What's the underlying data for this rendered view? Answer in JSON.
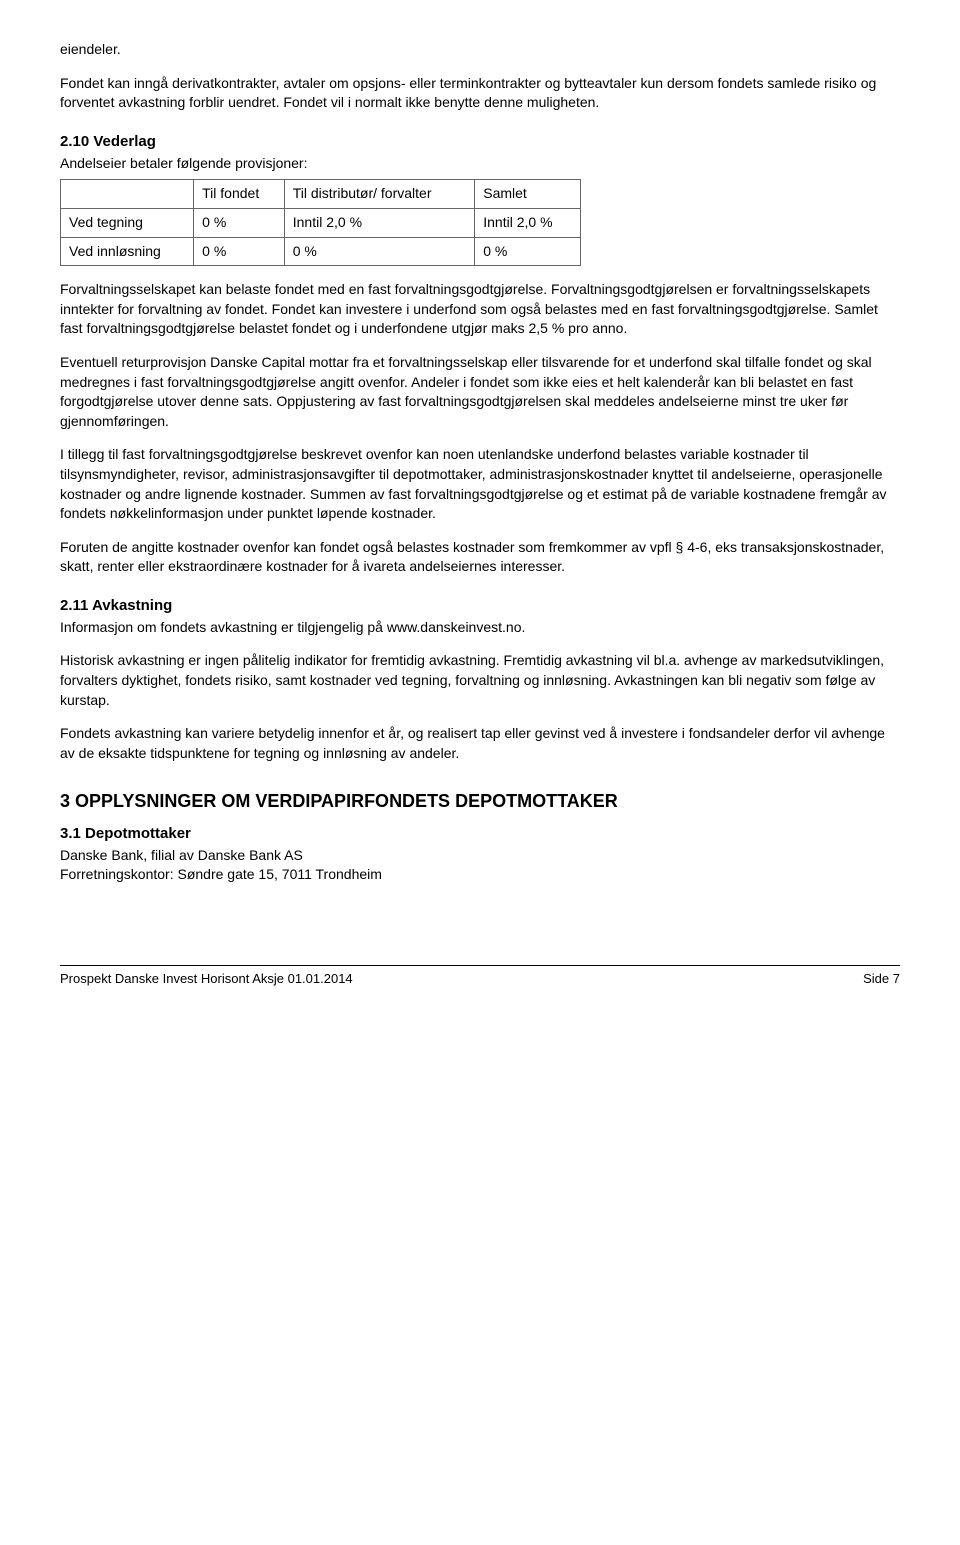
{
  "top_word": "eiendeler.",
  "para1": "Fondet kan inngå derivatkontrakter, avtaler om opsjons- eller terminkontrakter og bytteavtaler kun dersom fondets samlede risiko og forventet avkastning forblir uendret. Fondet vil i normalt ikke benytte denne muligheten.",
  "heading_vederlag": "2.10 Vederlag",
  "vederlag_intro": "Andelseier betaler følgende provisjoner:",
  "table": {
    "h1": "",
    "h2": "Til fondet",
    "h3": "Til distributør/ forvalter",
    "h4": "Samlet",
    "r1c1": "Ved tegning",
    "r1c2": "0 %",
    "r1c3": "Inntil 2,0 %",
    "r1c4": "Inntil 2,0 %",
    "r2c1": "Ved innløsning",
    "r2c2": "0 %",
    "r2c3": "0 %",
    "r2c4": "0 %"
  },
  "para2": "Forvaltningsselskapet kan belaste fondet med en fast forvaltningsgodtgjørelse. Forvaltningsgodtgjørelsen er forvaltningsselskapets inntekter for forvaltning av fondet. Fondet kan investere i underfond som også belastes med en fast forvaltningsgodtgjørelse. Samlet fast forvaltningsgodtgjørelse belastet fondet og i underfondene utgjør maks 2,5 % pro anno.",
  "para3": "Eventuell returprovisjon Danske Capital mottar fra et forvaltningsselskap eller tilsvarende for et underfond skal tilfalle fondet og skal medregnes i fast forvaltningsgodtgjørelse angitt ovenfor. Andeler i fondet som ikke eies et helt kalenderår kan bli belastet en fast forgodtgjørelse utover denne sats. Oppjustering av fast forvaltningsgodtgjørelsen skal meddeles andelseierne minst tre uker før gjennomføringen.",
  "para4": "I tillegg til fast forvaltningsgodtgjørelse beskrevet ovenfor kan noen utenlandske underfond belastes variable kostnader til tilsynsmyndigheter, revisor, administrasjonsavgifter til depotmottaker, administrasjonskostnader knyttet til andelseierne, operasjonelle kostnader og andre lignende kostnader.  Summen av fast forvaltningsgodtgjørelse og et estimat på de variable kostnadene fremgår av fondets nøkkelinformasjon under punktet løpende kostnader.",
  "para5": "Foruten de angitte kostnader ovenfor kan fondet også belastes kostnader som fremkommer av vpfl § 4-6, eks transaksjonskostnader, skatt, renter eller ekstraordinære kostnader for å ivareta andelseiernes interesser.",
  "heading_avkastning": "2.11 Avkastning",
  "avkastning_intro": "Informasjon om fondets avkastning er tilgjengelig på www.danskeinvest.no.",
  "para6": "Historisk avkastning er ingen pålitelig indikator for fremtidig avkastning. Fremtidig avkastning vil bl.a. avhenge av markedsutviklingen, forvalters dyktighet, fondets risiko, samt kostnader ved tegning, forvaltning og innløsning. Avkastningen kan bli negativ som følge av kurstap.",
  "para7": "Fondets avkastning kan variere betydelig innenfor et år, og realisert tap eller gevinst ved å investere i fondsandeler derfor vil avhenge av de eksakte tidspunktene for tegning og innløsning av andeler.",
  "heading_big": "3   OPPLYSNINGER OM VERDIPAPIRFONDETS DEPOTMOTTAKER",
  "heading_depot": "3.1  Depotmottaker",
  "depot_line1": "Danske Bank, filial av Danske Bank AS",
  "depot_line2": "Forretningskontor: Søndre gate 15, 7011 Trondheim",
  "footer_left": "Prospekt Danske Invest Horisont Aksje 01.01.2014",
  "footer_right": "Side 7"
}
